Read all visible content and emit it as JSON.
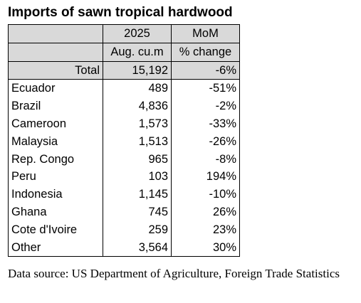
{
  "title": "Imports of sawn tropical hardwood",
  "header": {
    "col2_line1": "2025",
    "col2_line2": "Aug. cu.m",
    "col3_line1": "MoM",
    "col3_line2": "% change"
  },
  "total": {
    "label": "Total",
    "volume": "15,192",
    "change": "-6%"
  },
  "rows": [
    {
      "country": "Ecuador",
      "volume": "489",
      "change": "-51%"
    },
    {
      "country": "Brazil",
      "volume": "4,836",
      "change": "-2%"
    },
    {
      "country": "Cameroon",
      "volume": "1,573",
      "change": "-33%"
    },
    {
      "country": "Malaysia",
      "volume": "1,513",
      "change": "-26%"
    },
    {
      "country": "Rep. Congo",
      "volume": "965",
      "change": "-8%"
    },
    {
      "country": "Peru",
      "volume": "103",
      "change": "194%"
    },
    {
      "country": "Indonesia",
      "volume": "1,145",
      "change": "-10%"
    },
    {
      "country": "Ghana",
      "volume": "745",
      "change": "26%"
    },
    {
      "country": "Cote d'Ivoire",
      "volume": "259",
      "change": "23%"
    },
    {
      "country": "Other",
      "volume": "3,564",
      "change": "30%"
    }
  ],
  "source": "Data source: US Department of Agriculture, Foreign Trade Statistics",
  "chart_data": {
    "type": "table",
    "title": "Imports of sawn tropical hardwood",
    "columns": [
      "",
      "2025 Aug. cu.m",
      "MoM % change"
    ],
    "rows": [
      [
        "Total",
        15192,
        -6
      ],
      [
        "Ecuador",
        489,
        -51
      ],
      [
        "Brazil",
        4836,
        -2
      ],
      [
        "Cameroon",
        1573,
        -33
      ],
      [
        "Malaysia",
        1513,
        -26
      ],
      [
        "Rep. Congo",
        965,
        -8
      ],
      [
        "Peru",
        103,
        194
      ],
      [
        "Indonesia",
        1145,
        -10
      ],
      [
        "Ghana",
        745,
        26
      ],
      [
        "Cote d'Ivoire",
        259,
        23
      ],
      [
        "Other",
        3564,
        30
      ]
    ]
  }
}
